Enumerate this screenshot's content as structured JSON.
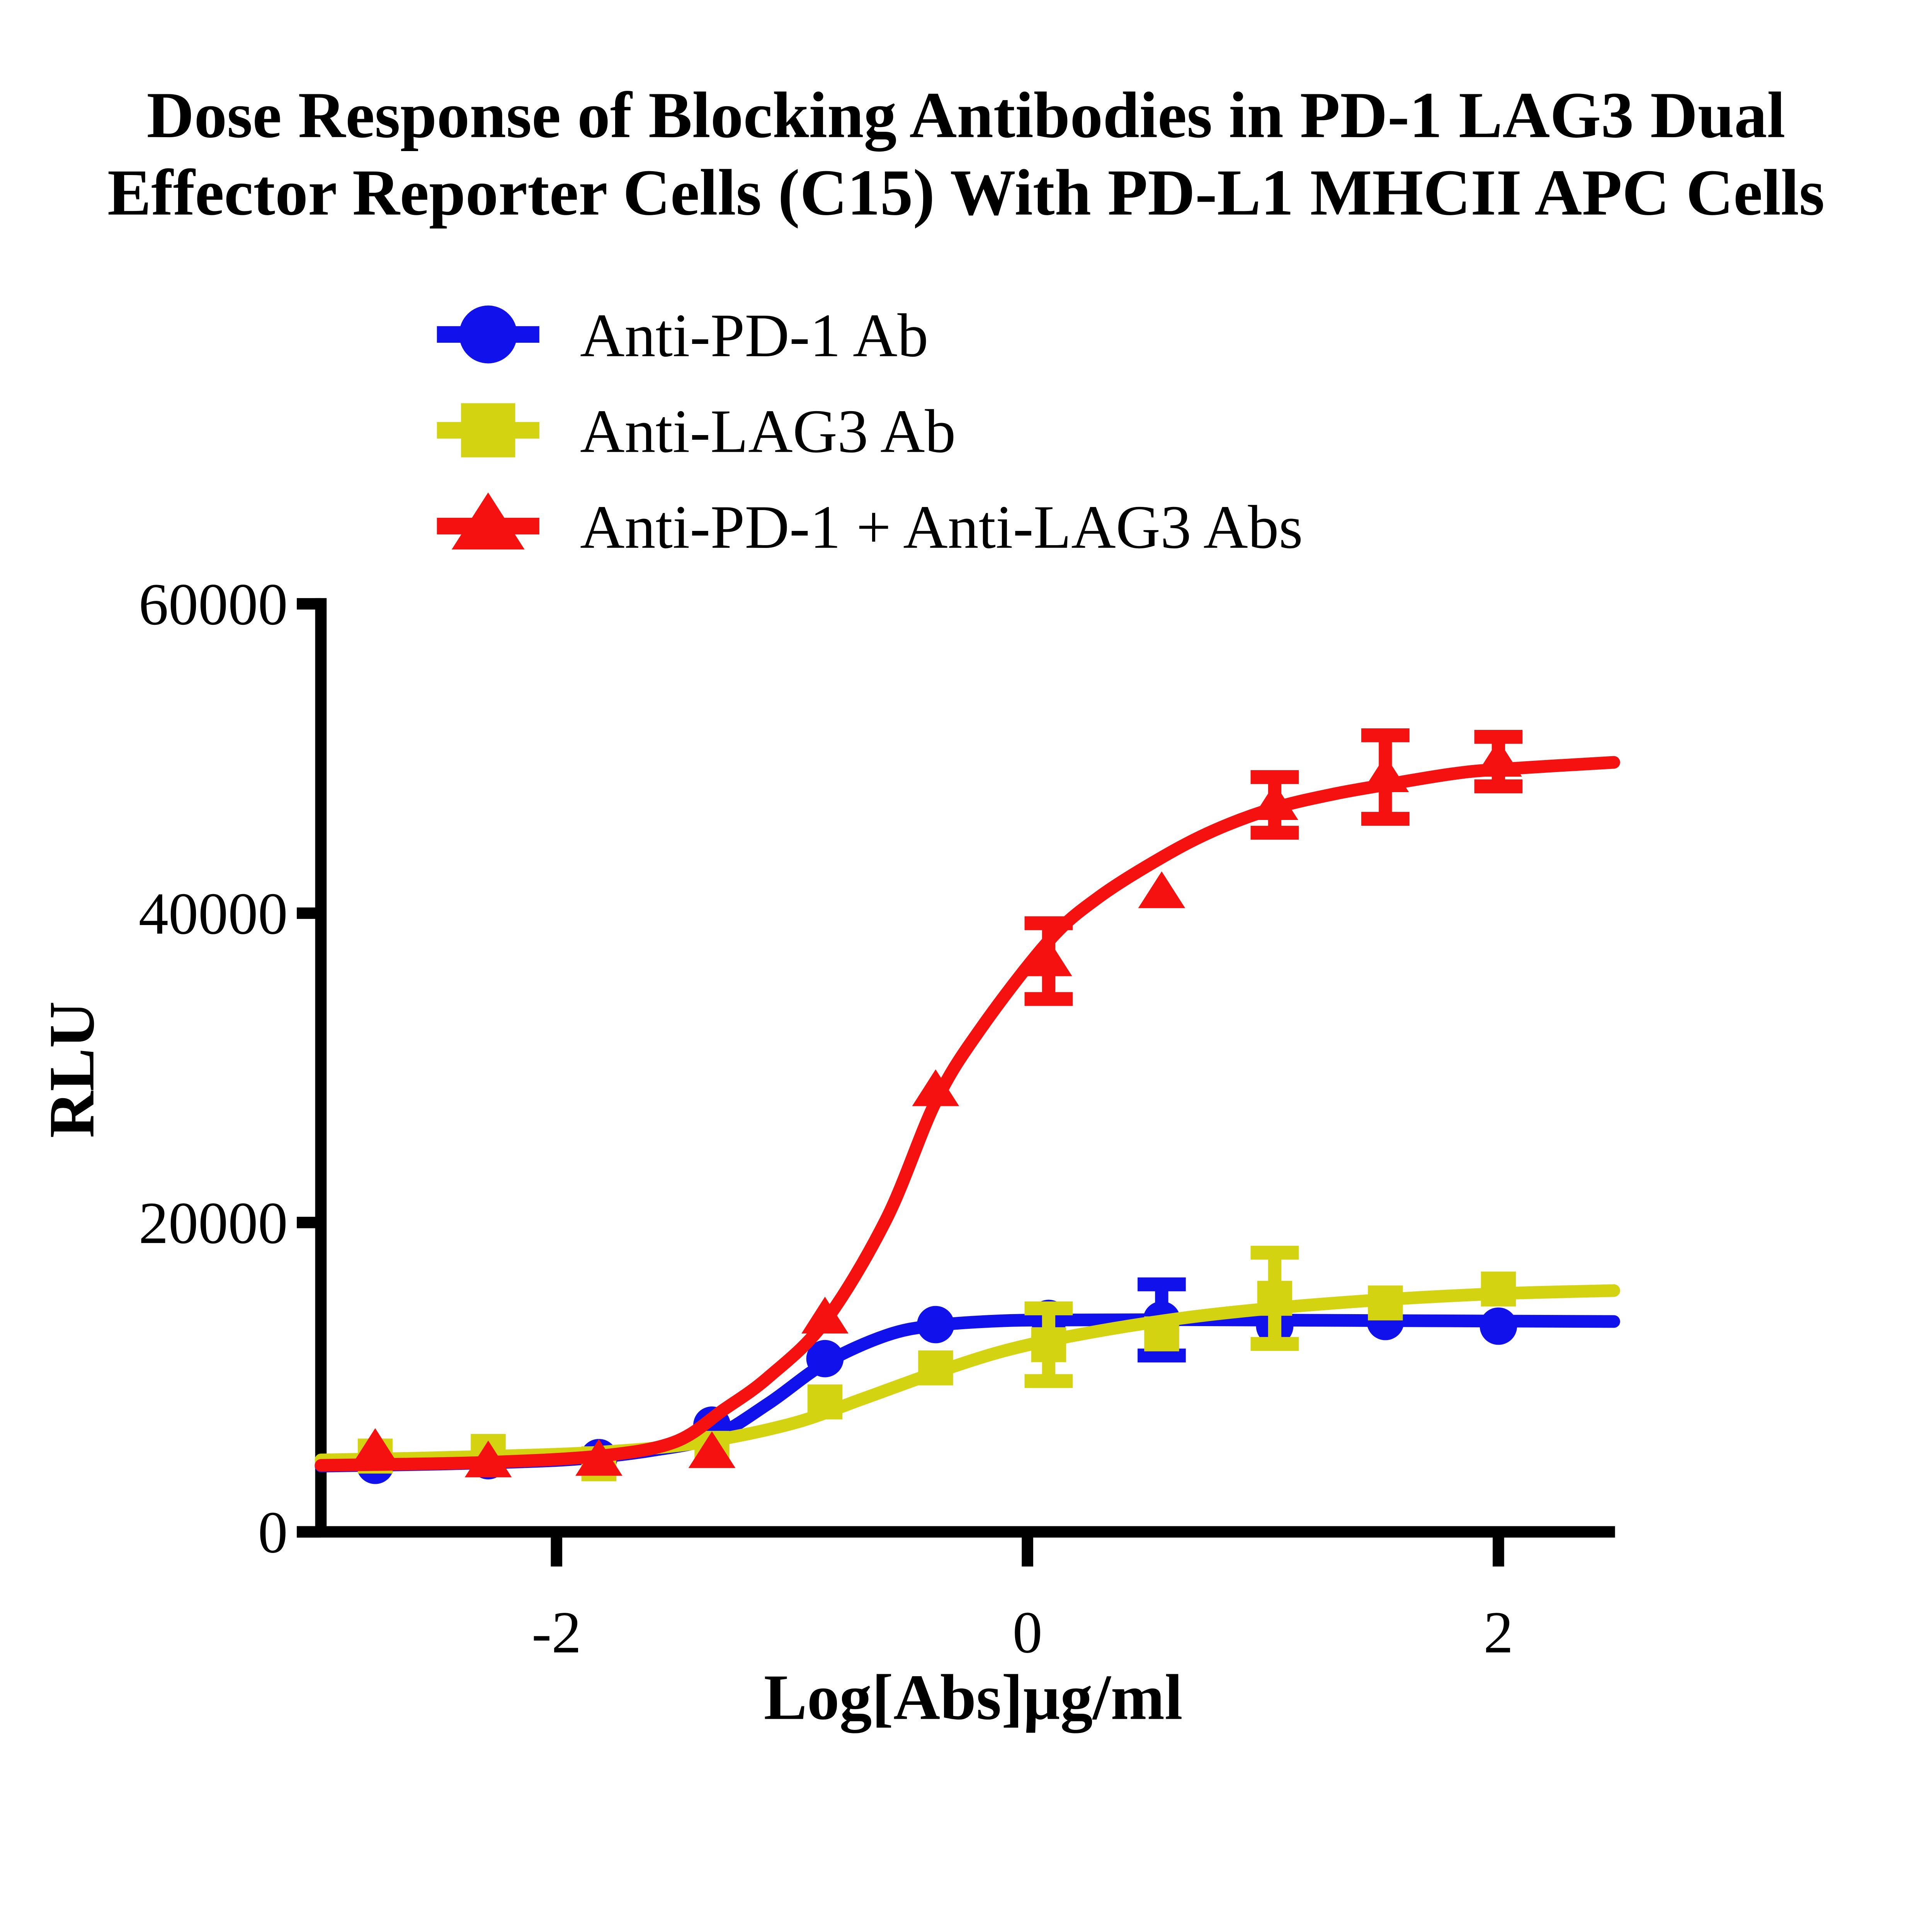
{
  "chart_data": {
    "type": "scatter",
    "title": "Dose Response of Blocking Antibodies in PD-1 LAG3 Dual Effector Reporter Cells (C15) With PD-L1 MHCII APC Cells",
    "title_lines": [
      "Dose Response of Blocking Antibodies in PD-1 LAG3 Dual",
      "Effector Reporter Cells (C15) With PD-L1 MHCII APC Cells"
    ],
    "xlabel": "Log[Abs]µg/ml",
    "ylabel": "RLU",
    "x_axis": {
      "ticks": [
        -2,
        0,
        2
      ],
      "range": [
        -3.0,
        2.5
      ]
    },
    "y_axis": {
      "ticks": [
        0,
        20000,
        40000,
        60000
      ],
      "range": [
        0,
        60000
      ]
    },
    "grid": false,
    "legend_position": "top-left",
    "background_color": "#ffffff",
    "axis_color": "#000000",
    "series": [
      {
        "name": "Anti-PD-1 Ab",
        "color": "#1111EC",
        "marker": "circle",
        "log_x": [
          -2.77,
          -2.29,
          -1.82,
          -1.34,
          -0.86,
          -0.39,
          0.09,
          0.57,
          1.05,
          1.52,
          2.0
        ],
        "rlu": [
          4300,
          4600,
          4800,
          6900,
          11200,
          13400,
          13800,
          13700,
          13300,
          13600,
          13300
        ],
        "err": [
          0,
          0,
          0,
          0,
          0,
          0,
          0,
          2300,
          0,
          0,
          0
        ],
        "fit_curve": {
          "log_x": [
            -3.0,
            -2.6,
            -2.2,
            -1.9,
            -1.6,
            -1.34,
            -1.1,
            -0.86,
            -0.6,
            -0.39,
            -0.1,
            0.2,
            0.6,
            1.2,
            1.8,
            2.49
          ],
          "rlu": [
            4250,
            4350,
            4500,
            4720,
            5250,
            6100,
            8300,
            10900,
            12700,
            13350,
            13650,
            13700,
            13720,
            13680,
            13640,
            13600
          ]
        }
      },
      {
        "name": "Anti-LAG3 Ab",
        "color": "#D3D311",
        "marker": "square",
        "log_x": [
          -2.77,
          -2.29,
          -1.82,
          -1.34,
          -0.86,
          -0.39,
          0.09,
          0.57,
          1.05,
          1.52,
          2.0
        ],
        "rlu": [
          4900,
          5200,
          4400,
          5400,
          8400,
          10600,
          12100,
          12800,
          15100,
          14800,
          15700
        ],
        "err": [
          0,
          0,
          0,
          0,
          0,
          0,
          2350,
          0,
          2950,
          0,
          0
        ],
        "fit_curve": {
          "log_x": [
            -3.0,
            -2.6,
            -2.2,
            -1.8,
            -1.4,
            -1.0,
            -0.7,
            -0.39,
            -0.1,
            0.2,
            0.6,
            1.0,
            1.5,
            2.0,
            2.49
          ],
          "rlu": [
            4650,
            4760,
            4920,
            5170,
            5750,
            7000,
            8600,
            10300,
            11700,
            12700,
            13700,
            14400,
            15000,
            15400,
            15600
          ]
        }
      },
      {
        "name": "Anti-PD-1 + Anti-LAG3 Abs",
        "color": "#F61111",
        "marker": "triangle",
        "log_x": [
          -2.77,
          -2.29,
          -1.82,
          -1.34,
          -0.86,
          -0.39,
          0.09,
          0.57,
          1.05,
          1.52,
          2.0
        ],
        "rlu": [
          5300,
          4500,
          4600,
          5100,
          13800,
          28500,
          36900,
          41300,
          47000,
          48800,
          49800
        ],
        "err": [
          0,
          0,
          0,
          0,
          0,
          0,
          2450,
          0,
          1800,
          2700,
          1600
        ],
        "fit_curve": {
          "log_x": [
            -3.0,
            -2.77,
            -2.29,
            -1.82,
            -1.5,
            -1.29,
            -1.1,
            -0.86,
            -0.6,
            -0.39,
            -0.2,
            0.09,
            0.3,
            0.57,
            0.8,
            1.05,
            1.3,
            1.52,
            1.8,
            2.0,
            2.49
          ],
          "rlu": [
            4300,
            4350,
            4500,
            4900,
            5800,
            7900,
            10000,
            13600,
            20200,
            27800,
            32500,
            38200,
            41000,
            43600,
            45400,
            46800,
            47700,
            48300,
            49000,
            49300,
            49750
          ]
        }
      }
    ]
  }
}
